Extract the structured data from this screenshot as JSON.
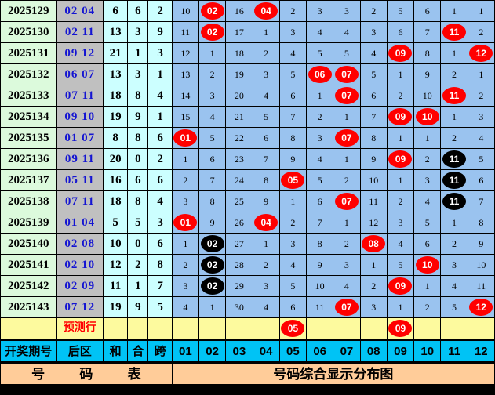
{
  "colors": {
    "issue_col_bg": "#dcfadc",
    "back_col_bg": "#c0c0c0",
    "back_text": "#1414d2",
    "sum_cols_bg": "#ccffff",
    "grid_bg": "#9ac3ef",
    "prediction_row_bg": "#fdfa9e",
    "header_row_bg": "#00c3f5",
    "footer_row_bg": "#ffcc99",
    "red_ball": "#ff0000",
    "black_ball": "#000000",
    "prediction_text": "#ff0000"
  },
  "chart_data": {
    "type": "table",
    "title_left": "号 码 表",
    "title_right": "号码综合显示分布图",
    "left_headers": [
      "开奖期号",
      "后区",
      "和",
      "合",
      "跨"
    ],
    "number_columns": [
      "01",
      "02",
      "03",
      "04",
      "05",
      "06",
      "07",
      "08",
      "09",
      "10",
      "11",
      "12"
    ],
    "prediction_label": "预测行",
    "prediction_grid": [
      "",
      "",
      "",
      "",
      "R05",
      "",
      "",
      "",
      "R09",
      "",
      "",
      ""
    ],
    "rows": [
      {
        "issue": "2025129",
        "back": "02 04",
        "sum": "6",
        "hezhi": "6",
        "span": "2",
        "grid": [
          "10",
          "R02",
          "16",
          "R04",
          "2",
          "3",
          "3",
          "2",
          "5",
          "6",
          "1",
          "1"
        ]
      },
      {
        "issue": "2025130",
        "back": "02 11",
        "sum": "13",
        "hezhi": "3",
        "span": "9",
        "grid": [
          "11",
          "R02",
          "17",
          "1",
          "3",
          "4",
          "4",
          "3",
          "6",
          "7",
          "R11",
          "2"
        ]
      },
      {
        "issue": "2025131",
        "back": "09 12",
        "sum": "21",
        "hezhi": "1",
        "span": "3",
        "grid": [
          "12",
          "1",
          "18",
          "2",
          "4",
          "5",
          "5",
          "4",
          "R09",
          "8",
          "1",
          "R12"
        ]
      },
      {
        "issue": "2025132",
        "back": "06 07",
        "sum": "13",
        "hezhi": "3",
        "span": "1",
        "grid": [
          "13",
          "2",
          "19",
          "3",
          "5",
          "R06",
          "R07",
          "5",
          "1",
          "9",
          "2",
          "1"
        ]
      },
      {
        "issue": "2025133",
        "back": "07 11",
        "sum": "18",
        "hezhi": "8",
        "span": "4",
        "grid": [
          "14",
          "3",
          "20",
          "4",
          "6",
          "1",
          "R07",
          "6",
          "2",
          "10",
          "R11",
          "2"
        ]
      },
      {
        "issue": "2025134",
        "back": "09 10",
        "sum": "19",
        "hezhi": "9",
        "span": "1",
        "grid": [
          "15",
          "4",
          "21",
          "5",
          "7",
          "2",
          "1",
          "7",
          "R09",
          "R10",
          "1",
          "3"
        ]
      },
      {
        "issue": "2025135",
        "back": "01 07",
        "sum": "8",
        "hezhi": "8",
        "span": "6",
        "grid": [
          "R01",
          "5",
          "22",
          "6",
          "8",
          "3",
          "R07",
          "8",
          "1",
          "1",
          "2",
          "4"
        ]
      },
      {
        "issue": "2025136",
        "back": "09 11",
        "sum": "20",
        "hezhi": "0",
        "span": "2",
        "grid": [
          "1",
          "6",
          "23",
          "7",
          "9",
          "4",
          "1",
          "9",
          "R09",
          "2",
          "B11",
          "5"
        ]
      },
      {
        "issue": "2025137",
        "back": "05 11",
        "sum": "16",
        "hezhi": "6",
        "span": "6",
        "grid": [
          "2",
          "7",
          "24",
          "8",
          "R05",
          "5",
          "2",
          "10",
          "1",
          "3",
          "B11",
          "6"
        ]
      },
      {
        "issue": "2025138",
        "back": "07 11",
        "sum": "18",
        "hezhi": "8",
        "span": "4",
        "grid": [
          "3",
          "8",
          "25",
          "9",
          "1",
          "6",
          "R07",
          "11",
          "2",
          "4",
          "B11",
          "7"
        ]
      },
      {
        "issue": "2025139",
        "back": "01 04",
        "sum": "5",
        "hezhi": "5",
        "span": "3",
        "grid": [
          "R01",
          "9",
          "26",
          "R04",
          "2",
          "7",
          "1",
          "12",
          "3",
          "5",
          "1",
          "8"
        ]
      },
      {
        "issue": "2025140",
        "back": "02 08",
        "sum": "10",
        "hezhi": "0",
        "span": "6",
        "grid": [
          "1",
          "B02",
          "27",
          "1",
          "3",
          "8",
          "2",
          "R08",
          "4",
          "6",
          "2",
          "9"
        ]
      },
      {
        "issue": "2025141",
        "back": "02 10",
        "sum": "12",
        "hezhi": "2",
        "span": "8",
        "grid": [
          "2",
          "B02",
          "28",
          "2",
          "4",
          "9",
          "3",
          "1",
          "5",
          "R10",
          "3",
          "10"
        ]
      },
      {
        "issue": "2025142",
        "back": "02 09",
        "sum": "11",
        "hezhi": "1",
        "span": "7",
        "grid": [
          "3",
          "B02",
          "29",
          "3",
          "5",
          "10",
          "4",
          "2",
          "R09",
          "1",
          "4",
          "11"
        ]
      },
      {
        "issue": "2025143",
        "back": "07 12",
        "sum": "19",
        "hezhi": "9",
        "span": "5",
        "grid": [
          "4",
          "1",
          "30",
          "4",
          "6",
          "11",
          "R07",
          "3",
          "1",
          "2",
          "5",
          "R12"
        ]
      }
    ]
  }
}
